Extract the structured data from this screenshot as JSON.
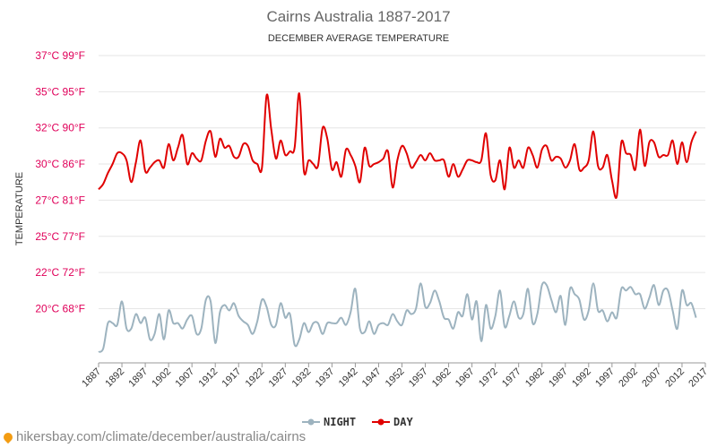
{
  "chart_data": {
    "type": "line",
    "title": "Cairns Australia 1887-2017",
    "subtitle": "DECEMBER AVERAGE TEMPERATURE",
    "ylabel": "TEMPERATURE",
    "ylim": [
      20,
      37
    ],
    "yticks": [
      {
        "value": 37,
        "label": "37°C 99°F"
      },
      {
        "value": 35,
        "label": "35°C 95°F"
      },
      {
        "value": 33,
        "label": "32°C 90°F"
      },
      {
        "value": 31,
        "label": "30°C 86°F"
      },
      {
        "value": 29,
        "label": "27°C 81°F"
      },
      {
        "value": 27,
        "label": "25°C 77°F"
      },
      {
        "value": 25,
        "label": "22°C 72°F"
      },
      {
        "value": 23,
        "label": "20°C 68°F"
      }
    ],
    "xticks": [
      "1887",
      "1892",
      "1897",
      "1902",
      "1907",
      "1912",
      "1917",
      "1922",
      "1927",
      "1932",
      "1937",
      "1942",
      "1947",
      "1952",
      "1957",
      "1962",
      "1967",
      "1972",
      "1977",
      "1982",
      "1987",
      "1992",
      "1997",
      "2002",
      "2007",
      "2012",
      "2017"
    ],
    "x_start": 1887,
    "x_end": 2017,
    "series": [
      {
        "name": "NIGHT",
        "color": "#9db3bf",
        "values": [
          20.6,
          20.8,
          22.2,
          22.2,
          22.1,
          23.4,
          21.9,
          21.9,
          22.7,
          22.2,
          22.5,
          21.3,
          21.6,
          22.7,
          21.3,
          22.9,
          22.2,
          22.2,
          21.9,
          22.4,
          22.6,
          21.6,
          21.9,
          23.5,
          23.4,
          21.1,
          22.8,
          23.2,
          22.9,
          23.3,
          22.6,
          22.3,
          22.1,
          21.6,
          22.3,
          23.5,
          23.1,
          22.1,
          22.1,
          23.3,
          22.5,
          22.7,
          21.0,
          21.3,
          22.2,
          21.7,
          22.2,
          22.2,
          21.6,
          22.2,
          22.2,
          22.2,
          22.5,
          22.1,
          22.8,
          24.1,
          21.9,
          21.7,
          22.3,
          21.6,
          22.1,
          22.2,
          22.1,
          22.7,
          22.3,
          22.1,
          22.9,
          22.7,
          23.0,
          24.4,
          23.1,
          23.3,
          24.0,
          23.4,
          22.5,
          22.4,
          21.9,
          22.8,
          22.6,
          23.8,
          22.4,
          23.4,
          21.2,
          23.2,
          21.9,
          22.6,
          24.0,
          22.0,
          22.6,
          23.4,
          22.5,
          22.7,
          24.1,
          22.2,
          22.7,
          24.3,
          24.3,
          23.5,
          22.8,
          23.7,
          22.1,
          24.1,
          23.8,
          23.5,
          22.4,
          22.9,
          24.4,
          22.9,
          22.9,
          22.3,
          22.8,
          22.5,
          24.1,
          24.0,
          24.2,
          23.8,
          23.8,
          23.0,
          23.6,
          24.3,
          23.2,
          24.0,
          24.0,
          22.9,
          21.9,
          24.0,
          23.2,
          23.3,
          22.5
        ]
      },
      {
        "name": "DAY",
        "color": "#e00000",
        "values": [
          29.6,
          29.9,
          30.5,
          31.0,
          31.6,
          31.6,
          31.2,
          30.0,
          31.1,
          32.3,
          30.6,
          30.8,
          31.1,
          31.2,
          30.8,
          32.1,
          31.2,
          31.9,
          32.6,
          31.0,
          31.6,
          31.3,
          31.2,
          32.3,
          32.8,
          31.4,
          32.4,
          31.9,
          32.0,
          31.4,
          31.4,
          32.1,
          32.0,
          31.2,
          31.0,
          30.8,
          34.8,
          32.9,
          31.3,
          32.3,
          31.5,
          31.7,
          31.9,
          34.9,
          30.6,
          31.2,
          31.0,
          30.9,
          33.0,
          32.4,
          30.7,
          31.1,
          30.3,
          31.8,
          31.5,
          30.9,
          30.0,
          31.9,
          30.9,
          31.0,
          31.1,
          31.3,
          31.7,
          29.7,
          31.2,
          32.0,
          31.6,
          30.8,
          31.1,
          31.5,
          31.2,
          31.6,
          31.2,
          31.2,
          31.2,
          30.3,
          31.0,
          30.3,
          30.7,
          31.2,
          31.2,
          31.1,
          31.2,
          32.7,
          30.4,
          30.1,
          31.2,
          29.6,
          31.9,
          30.8,
          31.2,
          30.8,
          31.9,
          31.5,
          30.8,
          31.8,
          32.0,
          31.2,
          31.4,
          31.3,
          30.8,
          31.2,
          32.1,
          30.7,
          30.8,
          31.2,
          32.8,
          30.9,
          30.8,
          31.5,
          30.1,
          29.2,
          32.2,
          31.6,
          31.5,
          30.7,
          32.9,
          30.9,
          32.2,
          32.2,
          31.4,
          31.5,
          31.5,
          32.3,
          31.0,
          32.2,
          31.1,
          32.2,
          32.8
        ]
      }
    ],
    "legend_position": "bottom-center",
    "grid": true
  },
  "footer": {
    "url_text": "hikersbay.com/climate/december/australia/cairns"
  }
}
